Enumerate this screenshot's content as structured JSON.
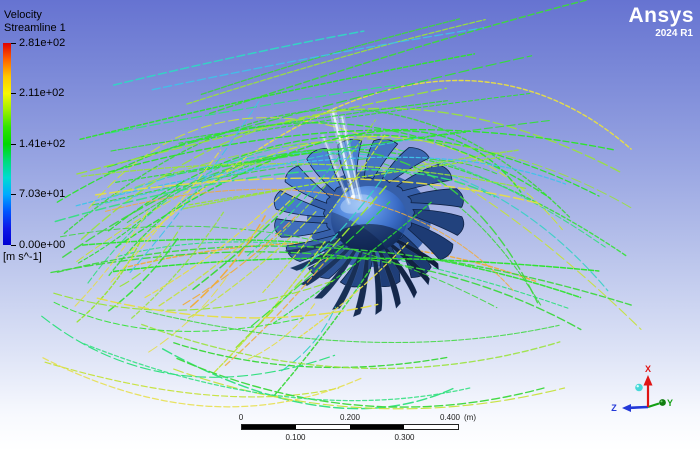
{
  "app": {
    "brand": "Ansys",
    "release": "2024 R1"
  },
  "legend": {
    "title": "Velocity",
    "subtitle": "Streamline 1",
    "unit": "[m s^-1]",
    "ticks": [
      "2.81e+02",
      "2.11e+02",
      "1.41e+02",
      "7.03e+01",
      "0.00e+00"
    ],
    "colorbar_stops": [
      "#e10000",
      "#ff6400",
      "#ffc800",
      "#f8f800",
      "#9cf000",
      "#30e400",
      "#00d800",
      "#00dc78",
      "#00dcd2",
      "#00aaff",
      "#0055ff",
      "#0d17e8",
      "#0000d2"
    ]
  },
  "ruler": {
    "top_labels": [
      "0",
      "0.200",
      "0.400"
    ],
    "unit_label": "(m)",
    "bottom_labels": [
      "0.100",
      "0.300"
    ]
  },
  "triad": {
    "x_label": "X",
    "y_label": "Y",
    "z_label": "Z",
    "x_color": "#e01414",
    "y_color": "#14a014",
    "y_ball_color": "#117c11",
    "z_color": "#2238d8",
    "view_ball_color": "#45d8d8"
  },
  "scene": {
    "background_top": "#6673d1",
    "background_bottom": "#ffffff",
    "fan": {
      "blade_light": "#4e82d6",
      "blade_dark": "#1c3a72",
      "lower_blade_dark": "#101f3e",
      "lower_blade_light": "#21406e",
      "hub_light": "#86b2f0",
      "hub_dark": "#16355c",
      "edge": "#0f2347"
    },
    "stream_palette": [
      {
        "color": "#2de42d",
        "weight": 24
      },
      {
        "color": "#3cd83c",
        "weight": 14
      },
      {
        "color": "#99e437",
        "weight": 14
      },
      {
        "color": "#c6e23c",
        "weight": 10
      },
      {
        "color": "#e6de45",
        "weight": 10
      },
      {
        "color": "#31e07f",
        "weight": 8
      },
      {
        "color": "#35d2c4",
        "weight": 6
      },
      {
        "color": "#3fc3e8",
        "weight": 4
      },
      {
        "color": "#f0ac3c",
        "weight": 4
      },
      {
        "color": "#ef7f35",
        "weight": 2
      }
    ]
  }
}
